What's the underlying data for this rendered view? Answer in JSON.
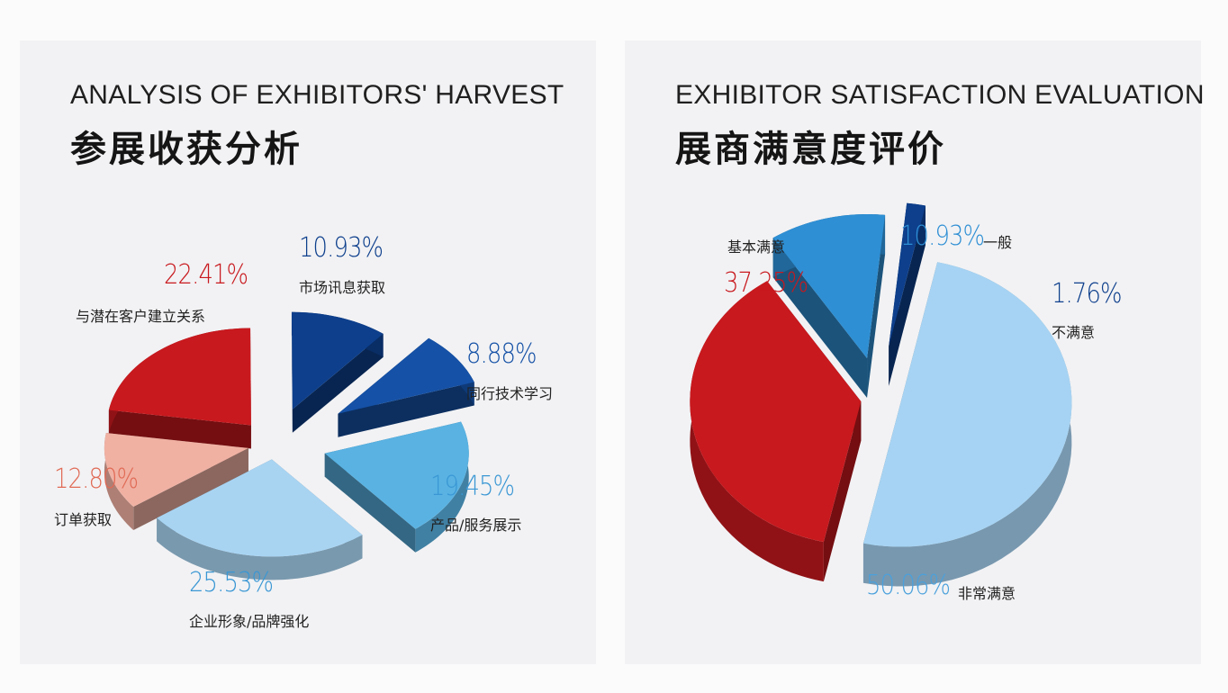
{
  "chart_data": [
    {
      "type": "pie",
      "title": "ANALYSIS OF EXHIBITORS' HARVEST",
      "subtitle": "参展收获分析",
      "slices": [
        {
          "label": "与潜在客户建立关系",
          "value": 22.41,
          "display": "22.41%",
          "color": "#c8191e"
        },
        {
          "label": "市场讯息获取",
          "value": 10.93,
          "display": "10.93%",
          "color": "#0d3f8c"
        },
        {
          "label": "同行技术学习",
          "value": 8.88,
          "display": "8.88%",
          "color": "#1551a6"
        },
        {
          "label": "产品/服务展示",
          "value": 19.45,
          "display": "19.45%",
          "color": "#59b2e2"
        },
        {
          "label": "企业形象/品牌强化",
          "value": 25.53,
          "display": "25.53%",
          "color": "#a8d4f2"
        },
        {
          "label": "订单获取",
          "value": 12.8,
          "display": "12.80%",
          "color": "#f0b1a3"
        }
      ]
    },
    {
      "type": "pie",
      "title": "EXHIBITOR SATISFACTION EVALUATION",
      "subtitle": "展商满意度评价",
      "slices": [
        {
          "label": "基本满意",
          "value": 37.25,
          "display": "37.25%",
          "color": "#c8191e"
        },
        {
          "label": "一般",
          "value": 10.93,
          "display": "10.93%",
          "color": "#2e8fd4"
        },
        {
          "label": "不满意",
          "value": 1.76,
          "display": "1.76%",
          "color": "#0d3f8c"
        },
        {
          "label": "非常满意",
          "value": 50.06,
          "display": "50.06%",
          "color": "#a6d3f3"
        }
      ]
    }
  ]
}
